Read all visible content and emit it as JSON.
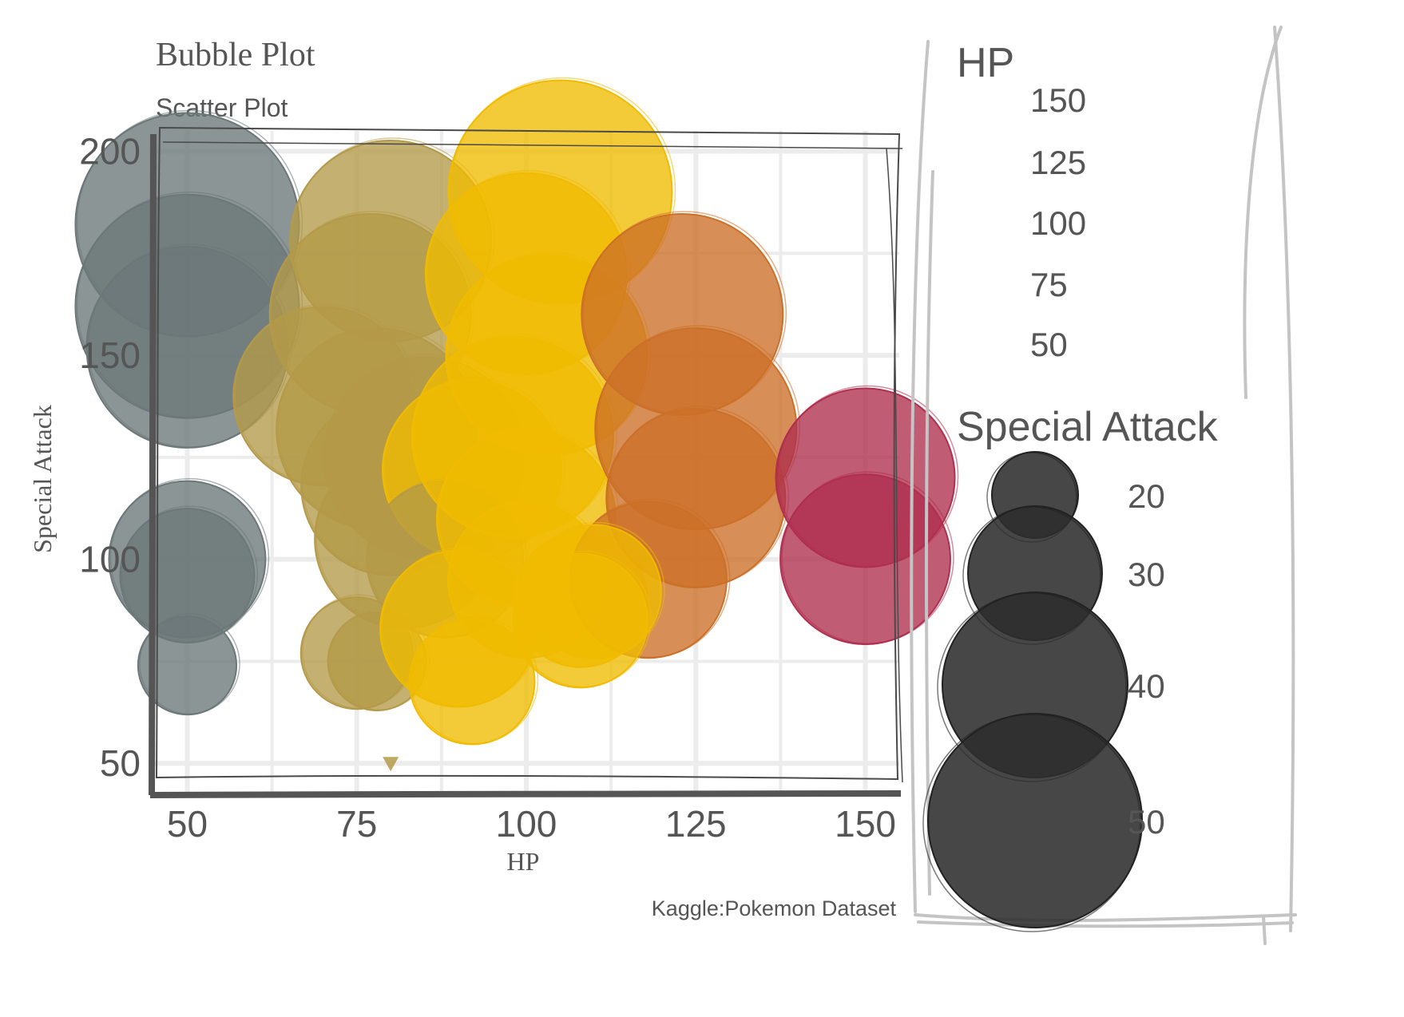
{
  "chart_data": {
    "type": "scatter",
    "title": "Bubble Plot",
    "subtitle": "Scatter Plot",
    "xlabel": "HP",
    "ylabel": "Special Attack",
    "caption": "Kaggle:Pokemon Dataset",
    "xlim": [
      45,
      155
    ],
    "ylim": [
      43,
      205
    ],
    "xticks": [
      "50",
      "75",
      "100",
      "125",
      "150"
    ],
    "yticks": [
      "50",
      "100",
      "150",
      "200"
    ],
    "grid": true,
    "colors": {
      "hp_low": "#6b7778",
      "hp_mid_low": "#b49a48",
      "hp_mid": "#f0bb00",
      "hp_mid_high": "#cc7028",
      "hp_high": "#b02e4e",
      "legend_bubble": "#2e2e2e",
      "text": "#555555"
    },
    "legend_color": {
      "title": "HP",
      "placement": "right",
      "labels": [
        "150",
        "125",
        "100",
        "75",
        "50"
      ]
    },
    "legend_size": {
      "title": "Special Attack",
      "placement": "right",
      "labels": [
        "20",
        "30",
        "40",
        "50"
      ],
      "values": [
        20,
        30,
        40,
        50
      ]
    },
    "points": [
      {
        "hp": 50,
        "sp_atk": 182,
        "size": 50
      },
      {
        "hp": 50,
        "sp_atk": 162,
        "size": 50
      },
      {
        "hp": 50,
        "sp_atk": 152,
        "size": 45
      },
      {
        "hp": 50,
        "sp_atk": 100,
        "size": 35
      },
      {
        "hp": 50,
        "sp_atk": 96,
        "size": 30
      },
      {
        "hp": 50,
        "sp_atk": 74,
        "size": 22
      },
      {
        "hp": 77,
        "sp_atk": 160,
        "size": 45
      },
      {
        "hp": 80,
        "sp_atk": 178,
        "size": 45
      },
      {
        "hp": 70,
        "sp_atk": 140,
        "size": 40
      },
      {
        "hp": 78,
        "sp_atk": 132,
        "size": 45
      },
      {
        "hp": 80,
        "sp_atk": 118,
        "size": 40
      },
      {
        "hp": 85,
        "sp_atk": 125,
        "size": 45
      },
      {
        "hp": 82,
        "sp_atk": 105,
        "size": 40
      },
      {
        "hp": 75,
        "sp_atk": 77,
        "size": 25
      },
      {
        "hp": 78,
        "sp_atk": 75,
        "size": 22
      },
      {
        "hp": 92,
        "sp_atk": 122,
        "size": 40
      },
      {
        "hp": 88,
        "sp_atk": 100,
        "size": 35
      },
      {
        "hp": 90,
        "sp_atk": 83,
        "size": 35
      },
      {
        "hp": 92,
        "sp_atk": 70,
        "size": 28
      },
      {
        "hp": 80,
        "sp_atk": 50,
        "size": 2
      },
      {
        "hp": 105,
        "sp_atk": 190,
        "size": 50
      },
      {
        "hp": 100,
        "sp_atk": 170,
        "size": 45
      },
      {
        "hp": 103,
        "sp_atk": 150,
        "size": 45
      },
      {
        "hp": 98,
        "sp_atk": 130,
        "size": 45
      },
      {
        "hp": 100,
        "sp_atk": 110,
        "size": 40
      },
      {
        "hp": 100,
        "sp_atk": 95,
        "size": 35
      },
      {
        "hp": 108,
        "sp_atk": 90,
        "size": 30
      },
      {
        "hp": 123,
        "sp_atk": 160,
        "size": 45
      },
      {
        "hp": 125,
        "sp_atk": 132,
        "size": 45
      },
      {
        "hp": 125,
        "sp_atk": 115,
        "size": 40
      },
      {
        "hp": 118,
        "sp_atk": 95,
        "size": 35
      },
      {
        "hp": 110,
        "sp_atk": 92,
        "size": 30
      },
      {
        "hp": 108,
        "sp_atk": 85,
        "size": 30
      },
      {
        "hp": 150,
        "sp_atk": 120,
        "size": 40
      },
      {
        "hp": 150,
        "sp_atk": 100,
        "size": 38
      }
    ]
  }
}
